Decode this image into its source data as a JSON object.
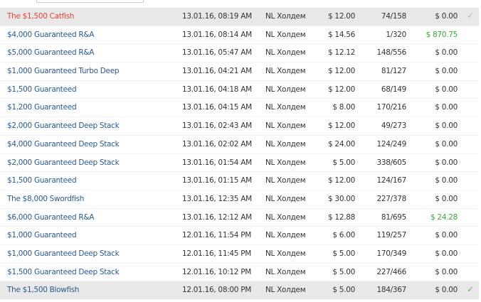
{
  "columns_hidden": true,
  "rows": [
    {
      "name": "The $1,500 Catfish",
      "date": "13.01.16, 08:19 AM",
      "game": "NL Холдем",
      "buyin": "$ 12.00",
      "players": "74/158",
      "won": "$ 0.00",
      "selected": true,
      "highlight": "red",
      "check": "✓",
      "check_color": "#bbbbbb"
    },
    {
      "name": "$4,000 Guaranteed R&A",
      "date": "13.01.16, 08:14 AM",
      "game": "NL Холдем",
      "buyin": "$ 14.56",
      "players": "1/320",
      "won": "$ 870.75",
      "positive": true
    },
    {
      "name": "$5,000 Guaranteed R&A",
      "date": "13.01.16, 05:47 AM",
      "game": "NL Холдем",
      "buyin": "$ 12.12",
      "players": "148/556",
      "won": "$ 0.00"
    },
    {
      "name": "$1,000 Guaranteed Turbo Deep",
      "date": "13.01.16, 04:21 AM",
      "game": "NL Холдем",
      "buyin": "$ 12.00",
      "players": "81/127",
      "won": "$ 0.00"
    },
    {
      "name": "$1,500 Guaranteed",
      "date": "13.01.16, 04:18 AM",
      "game": "NL Холдем",
      "buyin": "$ 12.00",
      "players": "68/149",
      "won": "$ 0.00"
    },
    {
      "name": "$1,200 Guaranteed",
      "date": "13.01.16, 04:15 AM",
      "game": "NL Холдем",
      "buyin": "$ 8.00",
      "players": "170/216",
      "won": "$ 0.00"
    },
    {
      "name": "$2,000 Guaranteed Deep Stack",
      "date": "13.01.16, 02:43 AM",
      "game": "NL Холдем",
      "buyin": "$ 12.00",
      "players": "49/273",
      "won": "$ 0.00"
    },
    {
      "name": "$4,000 Guaranteed Deep Stack",
      "date": "13.01.16, 02:02 AM",
      "game": "NL Холдем",
      "buyin": "$ 24.00",
      "players": "124/249",
      "won": "$ 0.00"
    },
    {
      "name": "$2,000 Guaranteed Deep Stack",
      "date": "13.01.16, 01:54 AM",
      "game": "NL Холдем",
      "buyin": "$ 5.00",
      "players": "338/605",
      "won": "$ 0.00"
    },
    {
      "name": "$1,500 Guaranteed",
      "date": "13.01.16, 01:15 AM",
      "game": "NL Холдем",
      "buyin": "$ 12.00",
      "players": "124/167",
      "won": "$ 0.00"
    },
    {
      "name": "The $8,000 Swordfish",
      "date": "13.01.16, 12:35 AM",
      "game": "NL Холдем",
      "buyin": "$ 30.00",
      "players": "227/378",
      "won": "$ 0.00"
    },
    {
      "name": "$6,000 Guaranteed R&A",
      "date": "13.01.16, 12:12 AM",
      "game": "NL Холдем",
      "buyin": "$ 12.88",
      "players": "81/695",
      "won": "$ 24.28",
      "positive": true
    },
    {
      "name": "$1,000 Guaranteed",
      "date": "12.01.16, 11:54 PM",
      "game": "NL Холдем",
      "buyin": "$ 6.00",
      "players": "119/257",
      "won": "$ 0.00"
    },
    {
      "name": "$1,000 Guaranteed Deep Stack",
      "date": "12.01.16, 11:45 PM",
      "game": "NL Холдем",
      "buyin": "$ 5.00",
      "players": "170/349",
      "won": "$ 0.00"
    },
    {
      "name": "$1,500 Guaranteed Deep Stack",
      "date": "12.01.16, 10:12 PM",
      "game": "NL Холдем",
      "buyin": "$ 5.00",
      "players": "227/466",
      "won": "$ 0.00"
    },
    {
      "name": "The $1,500 Blowfish",
      "date": "12.01.16, 08:00 PM",
      "game": "NL Холдем",
      "buyin": "$ 5.00",
      "players": "184/367",
      "won": "$ 0.00",
      "selected": true,
      "check": "✓",
      "check_color": "#5cb85c"
    }
  ]
}
